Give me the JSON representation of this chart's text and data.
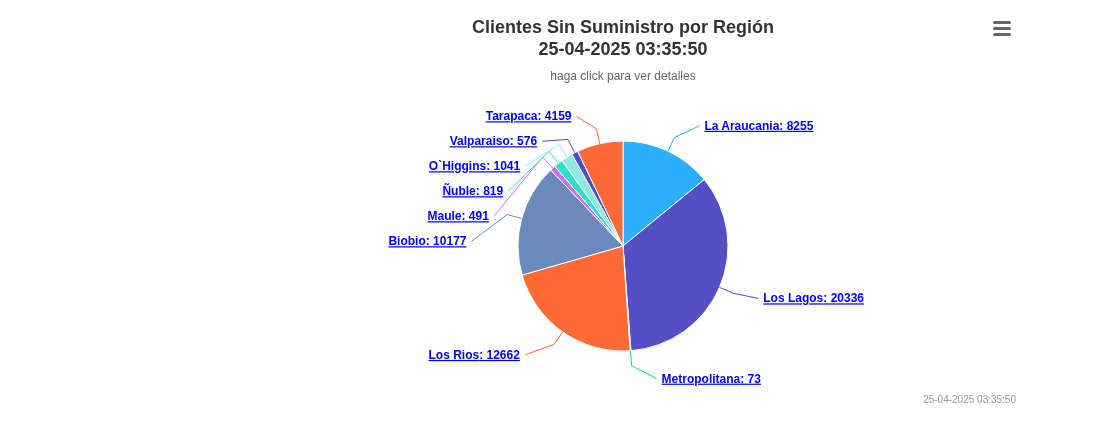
{
  "chart_data": {
    "type": "pie",
    "title": "Clientes Sin Suministro por Región\n25-04-2025 03:35:50",
    "subtitle": "haga click para ver detalles",
    "categories": [
      "La Araucania",
      "Los Lagos",
      "Metropolitana",
      "Los Rios",
      "Biobio",
      "Maule",
      "Ñuble",
      "O`Higgins",
      "Valparaiso",
      "Tarapaca"
    ],
    "values": [
      8255,
      20336,
      73,
      12662,
      10177,
      491,
      819,
      1041,
      576,
      4159
    ],
    "colors": [
      "#2caffe",
      "#544fc5",
      "#00e272",
      "#fe6a35",
      "#6b8abc",
      "#d568fb",
      "#2ee0ca",
      "#91e8e1",
      "#4b4fc2",
      "#fe6a35"
    ],
    "value_labels": [
      ": 8255",
      ": 20336",
      ": 73",
      ": 12662",
      ": 10177",
      ": 491",
      ": 819",
      ": 1041",
      ": 576",
      ": 4159"
    ],
    "annotations": [
      "25-04-2025 03:35:50"
    ]
  }
}
